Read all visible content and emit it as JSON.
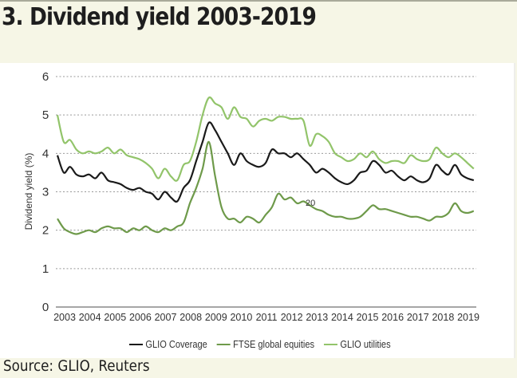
{
  "title": "3. Dividend yield 2003-2019",
  "source": "Source: GLIO, Reuters",
  "chart_data": {
    "type": "line",
    "title": "3. Dividend yield 2003-2019",
    "xlabel": "",
    "ylabel": "Dividend yield (%)",
    "ylim": [
      0,
      6
    ],
    "xlim": [
      2003,
      2019.6
    ],
    "yticks": [
      0,
      1,
      2,
      3,
      4,
      5,
      6
    ],
    "xtick_labels": [
      "2003",
      "2004",
      "2005",
      "2006",
      "2007",
      "2008",
      "2009",
      "2010",
      "2011",
      "2012",
      "2013",
      "2014",
      "2015",
      "2016",
      "2017",
      "2018",
      "2019"
    ],
    "grid": "horizontal dotted",
    "legend": "bottom",
    "annotation": "20",
    "x": [
      2003.0,
      2003.25,
      2003.5,
      2003.75,
      2004.0,
      2004.25,
      2004.5,
      2004.75,
      2005.0,
      2005.25,
      2005.5,
      2005.75,
      2006.0,
      2006.25,
      2006.5,
      2006.75,
      2007.0,
      2007.25,
      2007.5,
      2007.75,
      2008.0,
      2008.25,
      2008.5,
      2008.75,
      2009.0,
      2009.25,
      2009.5,
      2009.75,
      2010.0,
      2010.25,
      2010.5,
      2010.75,
      2011.0,
      2011.25,
      2011.5,
      2011.75,
      2012.0,
      2012.25,
      2012.5,
      2012.75,
      2013.0,
      2013.25,
      2013.5,
      2013.75,
      2014.0,
      2014.25,
      2014.5,
      2014.75,
      2015.0,
      2015.25,
      2015.5,
      2015.75,
      2016.0,
      2016.25,
      2016.5,
      2016.75,
      2017.0,
      2017.25,
      2017.5,
      2017.75,
      2018.0,
      2018.25,
      2018.5,
      2018.75,
      2019.0,
      2019.25,
      2019.5
    ],
    "series": [
      {
        "name": "GLIO Coverage",
        "color": "#1a1a1a",
        "values": [
          3.95,
          3.5,
          3.65,
          3.45,
          3.4,
          3.45,
          3.35,
          3.5,
          3.3,
          3.25,
          3.2,
          3.1,
          3.05,
          3.1,
          3.0,
          2.95,
          2.8,
          3.0,
          2.85,
          2.75,
          3.1,
          3.3,
          3.8,
          4.3,
          4.8,
          4.6,
          4.3,
          4.0,
          3.7,
          4.0,
          3.8,
          3.7,
          3.65,
          3.75,
          4.1,
          4.0,
          4.0,
          3.9,
          4.0,
          3.85,
          3.7,
          3.5,
          3.6,
          3.5,
          3.35,
          3.25,
          3.2,
          3.3,
          3.5,
          3.55,
          3.8,
          3.7,
          3.5,
          3.55,
          3.4,
          3.3,
          3.4,
          3.3,
          3.25,
          3.35,
          3.7,
          3.55,
          3.45,
          3.7,
          3.45,
          3.35,
          3.3
        ]
      },
      {
        "name": "FTSE global equities",
        "color": "#6e9a4a",
        "values": [
          2.3,
          2.05,
          1.95,
          1.9,
          1.95,
          2.0,
          1.95,
          2.05,
          2.1,
          2.05,
          2.05,
          1.95,
          2.05,
          2.0,
          2.1,
          2.0,
          1.95,
          2.05,
          2.0,
          2.1,
          2.2,
          2.7,
          3.1,
          3.6,
          4.3,
          3.4,
          2.6,
          2.3,
          2.3,
          2.2,
          2.35,
          2.3,
          2.2,
          2.4,
          2.6,
          2.95,
          2.8,
          2.85,
          2.7,
          2.75,
          2.65,
          2.55,
          2.5,
          2.4,
          2.35,
          2.35,
          2.3,
          2.3,
          2.35,
          2.5,
          2.65,
          2.55,
          2.55,
          2.5,
          2.45,
          2.4,
          2.35,
          2.35,
          2.3,
          2.25,
          2.35,
          2.35,
          2.45,
          2.7,
          2.5,
          2.45,
          2.5
        ]
      },
      {
        "name": "GLIO utilities",
        "color": "#92c46a",
        "values": [
          5.0,
          4.3,
          4.35,
          4.1,
          4.0,
          4.05,
          4.0,
          4.05,
          4.15,
          4.0,
          4.1,
          3.95,
          3.9,
          3.85,
          3.75,
          3.6,
          3.35,
          3.6,
          3.4,
          3.3,
          3.7,
          3.8,
          4.3,
          5.0,
          5.45,
          5.3,
          5.2,
          4.9,
          5.2,
          4.95,
          4.9,
          4.7,
          4.85,
          4.9,
          4.85,
          4.95,
          4.95,
          4.9,
          4.9,
          4.85,
          4.2,
          4.5,
          4.45,
          4.3,
          4.0,
          3.9,
          3.8,
          3.85,
          4.0,
          3.9,
          4.05,
          3.85,
          3.75,
          3.8,
          3.8,
          3.75,
          3.95,
          3.85,
          3.8,
          3.85,
          4.15,
          4.0,
          3.9,
          4.0,
          3.9,
          3.75,
          3.6
        ]
      }
    ]
  }
}
